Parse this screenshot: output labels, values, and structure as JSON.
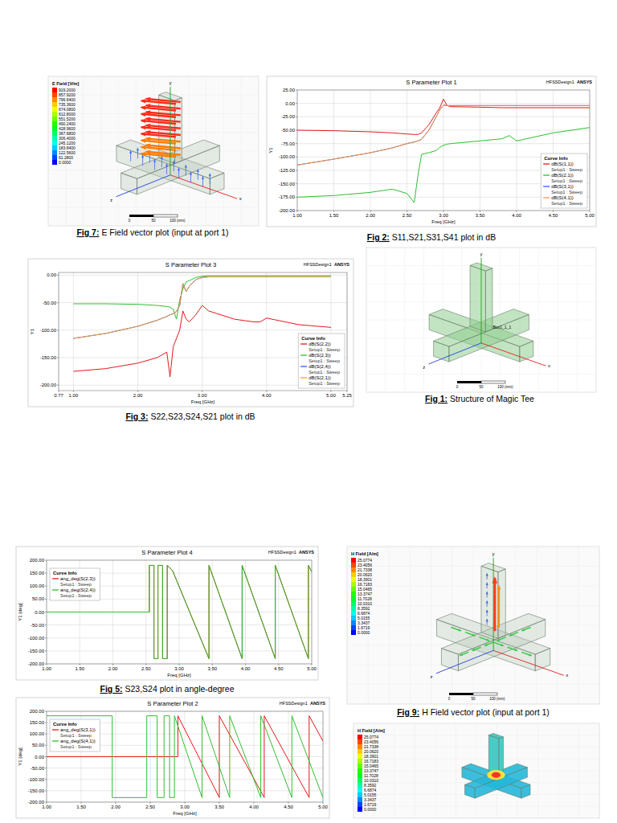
{
  "chart_data": [
    {
      "type": "line",
      "title": "S Parameter Plot 1",
      "annotations": [
        "HFSSDesign1",
        "ANSYS",
        "Curve Info",
        "Setup1 : Sweep"
      ],
      "x_label": "Freq [GHz]",
      "y_label": "Y1",
      "x": [
        1.0,
        1.5,
        2.0,
        2.3,
        2.5,
        2.6,
        2.65,
        2.7,
        2.8,
        2.9,
        2.95,
        3.0,
        3.05,
        3.1,
        3.5,
        3.8,
        3.9,
        4.0,
        4.5,
        5.0
      ],
      "series": [
        {
          "name": "dB(S(1,1))",
          "color": "#e41a1c",
          "values": [
            -50,
            -51,
            -53,
            -55,
            -57,
            -58,
            -58,
            -55,
            -40,
            -18,
            -8,
            8,
            -4,
            -6,
            -7,
            -8,
            -8,
            -8,
            -8,
            -8
          ]
        },
        {
          "name": "dB(S(2,1))",
          "color": "#2fbf2f",
          "values": [
            -175,
            -172,
            -166,
            -160,
            -168,
            -185,
            -135,
            -95,
            -92,
            -88,
            -82,
            -78,
            -76,
            -75,
            -70,
            -66,
            -60,
            -70,
            -55,
            -45
          ]
        },
        {
          "name": "dB(S(3,1))",
          "color": "#3355ff",
          "values": [
            -115,
            -104,
            -92,
            -83,
            -75,
            -72,
            -70,
            -67,
            -50,
            -25,
            -12,
            -3,
            -4,
            -4,
            -4,
            -4,
            -4,
            -4,
            -4,
            -4
          ]
        },
        {
          "name": "dB(S(4,1))",
          "color": "#ff9a2e",
          "values": [
            -115,
            -104,
            -92,
            -83,
            -75,
            -72,
            -70,
            -67,
            -50,
            -25,
            -12,
            -3,
            -4,
            -4,
            -4,
            -4,
            -4,
            -4,
            -4,
            -4
          ]
        }
      ],
      "xlim": [
        1,
        5
      ],
      "ylim": [
        -200,
        25
      ],
      "xticks": [
        {
          "value": 1,
          "label": "1.00"
        },
        {
          "value": 1.5,
          "label": "1.50"
        },
        {
          "value": 2,
          "label": "2.00"
        },
        {
          "value": 2.5,
          "label": "2.50"
        },
        {
          "value": 3,
          "label": "3.00"
        },
        {
          "value": 3.5,
          "label": "3.50"
        },
        {
          "value": 4,
          "label": "4.00"
        },
        {
          "value": 4.5,
          "label": "4.50"
        },
        {
          "value": 5,
          "label": "5.00"
        }
      ],
      "yticks": [
        {
          "value": -200,
          "label": "-200.00"
        },
        {
          "value": -175,
          "label": "-175.00"
        },
        {
          "value": -150,
          "label": "-150.00"
        },
        {
          "value": -125,
          "label": "-125.00"
        },
        {
          "value": -100,
          "label": "-100.00"
        },
        {
          "value": -75,
          "label": "-75.00"
        },
        {
          "value": -50,
          "label": "-50.00"
        },
        {
          "value": -25,
          "label": "-25.00"
        },
        {
          "value": 0,
          "label": "0.00"
        },
        {
          "value": 25,
          "label": "25.00"
        }
      ],
      "grid": true,
      "legend": "lower right"
    },
    {
      "type": "line",
      "title": "S Parameter Plot 3",
      "annotations": [
        "HFSSDesign1",
        "ANSYS",
        "Curve Info",
        "Setup1 : Sweep"
      ],
      "x_label": "Freq [GHz]",
      "y_label": "Y1",
      "x": [
        1.0,
        1.5,
        2.0,
        2.3,
        2.45,
        2.5,
        2.55,
        2.6,
        2.65,
        2.7,
        2.75,
        2.8,
        2.9,
        3.0,
        3.1,
        3.5,
        3.8,
        3.9,
        4.0,
        4.5,
        5.0
      ],
      "series": [
        {
          "name": "dB(S(2,2))",
          "color": "#e41a1c",
          "values": [
            -175,
            -170,
            -160,
            -150,
            -140,
            -185,
            -130,
            -115,
            -100,
            -65,
            -80,
            -85,
            -72,
            -55,
            -65,
            -80,
            -85,
            -85,
            -78,
            -90,
            -95
          ]
        },
        {
          "name": "dB(S(2,3))",
          "color": "#2fbf2f",
          "values": [
            -52,
            -52,
            -53,
            -55,
            -57,
            -58,
            -62,
            -80,
            -45,
            -25,
            -12,
            -10,
            -4,
            -2,
            -1,
            -1,
            -1,
            -1,
            -1,
            -1,
            -1
          ]
        },
        {
          "name": "dB(S(2,4))",
          "color": "#3355ff",
          "values": [
            -115,
            -106,
            -93,
            -82,
            -75,
            -72,
            -70,
            -66,
            -55,
            -15,
            -30,
            -20,
            -8,
            -4,
            -3,
            -3,
            -3,
            -3,
            -3,
            -3,
            -3
          ]
        },
        {
          "name": "dB(S(2,1))",
          "color": "#f0a030",
          "values": [
            -115,
            -106,
            -93,
            -82,
            -75,
            -72,
            -70,
            -66,
            -55,
            -15,
            -30,
            -20,
            -8,
            -4,
            -3,
            -3,
            -3,
            -3,
            -3,
            -3,
            -3
          ]
        }
      ],
      "xlim": [
        0.77,
        5.25
      ],
      "ylim": [
        -210,
        5
      ],
      "xticks": [
        0.77,
        {
          "value": 1,
          "label": "1.00"
        },
        {
          "value": 2,
          "label": "2.00"
        },
        {
          "value": 3,
          "label": "3.00"
        },
        {
          "value": 4,
          "label": "4.00"
        },
        {
          "value": 5,
          "label": "5.00"
        },
        5.25
      ],
      "yticks": [
        {
          "value": -200,
          "label": "-200.00"
        },
        {
          "value": -150,
          "label": "-150.00"
        },
        {
          "value": -100,
          "label": "-100.00"
        },
        {
          "value": -50,
          "label": "-50.00"
        },
        {
          "value": 0,
          "label": "0.00"
        }
      ],
      "grid": true,
      "legend": "lower right"
    },
    {
      "type": "line",
      "title": "S Parameter Plot 4",
      "annotations": [
        "HFSSDesign1",
        "ANSYS",
        "Curve Info",
        "Setup1 : Sweep"
      ],
      "x_label": "Freq [GHz]",
      "y_label": "Y1 [deg]",
      "x": [
        1.0,
        2.55,
        2.55,
        2.62,
        2.62,
        2.68,
        2.68,
        2.75,
        2.75,
        2.82,
        2.82,
        2.9,
        3.45,
        3.45,
        3.95,
        3.95,
        4.45,
        4.45,
        4.95,
        4.95,
        5.0
      ],
      "series": [
        {
          "name": "ang_deg(S(2,3))",
          "color": "#e41a1c",
          "values": [
            0,
            0,
            180,
            180,
            -180,
            -180,
            180,
            180,
            -180,
            -180,
            180,
            160,
            -180,
            180,
            -180,
            180,
            -180,
            180,
            -180,
            180,
            155
          ]
        },
        {
          "name": "ang_deg(S(2,4))",
          "color": "#2fbf2f",
          "values": [
            0,
            0,
            180,
            180,
            -180,
            -180,
            180,
            180,
            -180,
            -180,
            180,
            160,
            -180,
            180,
            -180,
            180,
            -180,
            180,
            -180,
            180,
            155
          ]
        }
      ],
      "xlim": [
        1,
        5
      ],
      "ylim": [
        -200,
        200
      ],
      "xticks": [
        {
          "value": 1,
          "label": "1.00"
        },
        {
          "value": 1.5,
          "label": "1.50"
        },
        {
          "value": 2,
          "label": "2.00"
        },
        {
          "value": 2.5,
          "label": "2.50"
        },
        {
          "value": 3,
          "label": "3.00"
        },
        {
          "value": 3.5,
          "label": "3.50"
        },
        {
          "value": 4,
          "label": "4.00"
        },
        {
          "value": 4.5,
          "label": "4.50"
        },
        {
          "value": 5,
          "label": "5.00"
        }
      ],
      "yticks": [
        {
          "value": -200,
          "label": "-200.00"
        },
        {
          "value": -150,
          "label": "-150.00"
        },
        {
          "value": -100,
          "label": "-100.00"
        },
        {
          "value": -50,
          "label": "-50.00"
        },
        {
          "value": 0,
          "label": "0.00"
        },
        {
          "value": 50,
          "label": "50.00"
        },
        {
          "value": 100,
          "label": "100.00"
        },
        {
          "value": 150,
          "label": "150.00"
        },
        {
          "value": 200,
          "label": "200.00"
        }
      ],
      "grid": true,
      "legend": "upper left"
    },
    {
      "type": "line",
      "title": "S Parameter Plot 2",
      "annotations": [
        "HFSSDesign1",
        "ANSYS",
        "Curve Info",
        "Setup1 : Sweep"
      ],
      "x_label": "Freq [GHz]",
      "y_label": "Y1 [deg]",
      "x": [
        1.0,
        1.95,
        1.95,
        2.45,
        2.45,
        2.6,
        2.6,
        2.7,
        2.7,
        2.78,
        2.78,
        2.85,
        2.85,
        2.9,
        2.9,
        3.25,
        3.25,
        3.5,
        3.5,
        3.65,
        3.65,
        4.1,
        4.1,
        4.15,
        4.15,
        4.55,
        4.55,
        4.8,
        4.8,
        5.0
      ],
      "series": [
        {
          "name": "ang_deg(S(3,1))",
          "color": "#e41a1c",
          "values": [
            0,
            0,
            0,
            0,
            0,
            0,
            0,
            0,
            0,
            0,
            0,
            0,
            0,
            0,
            180,
            -30,
            -30,
            -180,
            180,
            97,
            97,
            -152,
            -152,
            -180,
            180,
            -42,
            -42,
            -180,
            180,
            69
          ]
        },
        {
          "name": "ang_deg(S(4,1))",
          "color": "#2fbf2f",
          "values": [
            180,
            180,
            -180,
            -180,
            180,
            180,
            -180,
            -180,
            180,
            180,
            -180,
            -180,
            180,
            135,
            135,
            -180,
            180,
            -45,
            -45,
            -180,
            180,
            -180,
            180,
            140,
            140,
            -180,
            180,
            -20,
            -20,
            -180
          ]
        }
      ],
      "xlim": [
        1,
        5
      ],
      "ylim": [
        -200,
        200
      ],
      "xticks": [
        {
          "value": 1,
          "label": "1.00"
        },
        {
          "value": 1.5,
          "label": "1.50"
        },
        {
          "value": 2,
          "label": "2.00"
        },
        {
          "value": 2.5,
          "label": "2.50"
        },
        {
          "value": 3,
          "label": "3.00"
        },
        {
          "value": 3.5,
          "label": "3.50"
        },
        {
          "value": 4,
          "label": "4.00"
        },
        {
          "value": 4.5,
          "label": "4.50"
        },
        {
          "value": 5,
          "label": "5.00"
        }
      ],
      "yticks": [
        {
          "value": -200,
          "label": "-200.00"
        },
        {
          "value": -150,
          "label": "-150.00"
        },
        {
          "value": -100,
          "label": "-100.00"
        },
        {
          "value": -50,
          "label": "-50.00"
        },
        {
          "value": 0,
          "label": "0.00"
        },
        {
          "value": 50,
          "label": "50.00"
        },
        {
          "value": 100,
          "label": "100.00"
        },
        {
          "value": 150,
          "label": "150.00"
        },
        {
          "value": 200,
          "label": "200.00"
        }
      ],
      "grid": true,
      "legend": "upper left"
    }
  ],
  "captions": [
    {
      "label": "Fig 7:",
      "text": "E Field vector plot (input at port 1)"
    },
    {
      "label": "Fig 2:",
      "text": "S11,S21,S31,S41 plot in dB"
    },
    {
      "label": "Fig 3:",
      "text": "S22,S23,S24,S21 plot in dB"
    },
    {
      "label": "Fig 1:",
      "text": "Structure of Magic Tee"
    },
    {
      "label": "Fig 5:",
      "text": "S23,S24 plot in angle-degree"
    },
    {
      "label": "Fig 9:",
      "text": "H Field vector plot (input at port 1)"
    }
  ],
  "images": [
    {
      "colorbar": {
        "title": "E Field [V/m]",
        "labels": [
          "919.2000",
          "857.9200",
          "796.6400",
          "735.3600",
          "674.0800",
          "612.8000",
          "551.5200",
          "490.2400",
          "428.9600",
          "367.6800",
          "306.4000",
          "245.1200",
          "183.8400",
          "122.5600",
          "61.2800",
          "0.0000"
        ]
      },
      "axes": [
        "x",
        "y",
        "z"
      ],
      "scale": [
        "0",
        "50",
        "100 (mm)"
      ]
    },
    {
      "label": "Box1_1_1",
      "axes": [
        "x",
        "y",
        "z"
      ],
      "scale": [
        "0",
        "50",
        "100 (mm)"
      ]
    },
    {
      "colorbar": {
        "title": "H Field [A/m]",
        "labels": [
          "25.0774",
          "23.4056",
          "21.7338",
          "20.0620",
          "18.3901",
          "16.7183",
          "15.0465",
          "13.3747",
          "11.7028",
          "10.0310",
          "8.3592",
          "6.6874",
          "5.0155",
          "3.3437",
          "1.6719",
          "0.0000"
        ]
      },
      "axes": [
        "x",
        "y",
        "z"
      ],
      "scale": [
        "0",
        "50",
        "100 (mm)"
      ]
    },
    {
      "colorbar": {
        "title": "H Field [A/m]",
        "labels": [
          "25.0774",
          "23.4056",
          "21.7338",
          "20.0620",
          "18.3901",
          "16.7183",
          "15.0465",
          "13.3747",
          "11.7028",
          "10.0310",
          "8.3592",
          "6.6874",
          "5.0155",
          "3.3437",
          "1.6719",
          "0.0000"
        ]
      }
    }
  ]
}
